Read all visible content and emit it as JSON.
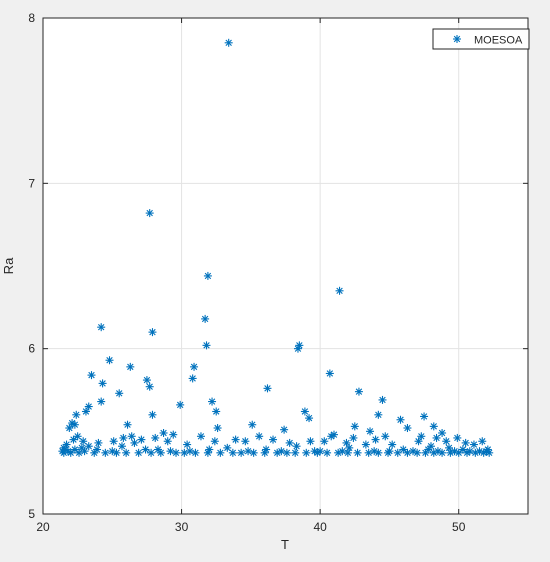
{
  "chart_data": {
    "type": "scatter",
    "title": "",
    "xlabel": "T",
    "ylabel": "Ra",
    "xlim": [
      20,
      55
    ],
    "ylim": [
      5,
      8
    ],
    "xticks": [
      20,
      30,
      40,
      50
    ],
    "yticks": [
      5,
      6,
      7,
      8
    ],
    "grid": true,
    "legend_position": "top-right",
    "series": [
      {
        "name": "MOESOA",
        "color": "#0072BD",
        "marker": "asterisk",
        "points": [
          [
            33.4,
            7.85
          ],
          [
            27.7,
            6.82
          ],
          [
            31.9,
            6.44
          ],
          [
            41.4,
            6.35
          ],
          [
            31.7,
            6.18
          ],
          [
            24.2,
            6.13
          ],
          [
            27.9,
            6.1
          ],
          [
            31.8,
            6.02
          ],
          [
            38.5,
            6.02
          ],
          [
            38.4,
            6.0
          ],
          [
            24.8,
            5.93
          ],
          [
            30.9,
            5.89
          ],
          [
            26.3,
            5.89
          ],
          [
            40.7,
            5.85
          ],
          [
            23.5,
            5.84
          ],
          [
            30.8,
            5.82
          ],
          [
            27.5,
            5.81
          ],
          [
            24.3,
            5.79
          ],
          [
            27.7,
            5.77
          ],
          [
            36.2,
            5.76
          ],
          [
            42.8,
            5.74
          ],
          [
            25.5,
            5.73
          ],
          [
            44.5,
            5.69
          ],
          [
            32.2,
            5.68
          ],
          [
            24.2,
            5.68
          ],
          [
            29.9,
            5.66
          ],
          [
            23.3,
            5.65
          ],
          [
            23.1,
            5.62
          ],
          [
            38.9,
            5.62
          ],
          [
            27.9,
            5.6
          ],
          [
            32.5,
            5.62
          ],
          [
            22.4,
            5.6
          ],
          [
            44.2,
            5.6
          ],
          [
            47.5,
            5.59
          ],
          [
            22.1,
            5.55
          ],
          [
            39.2,
            5.58
          ],
          [
            45.8,
            5.57
          ],
          [
            26.1,
            5.54
          ],
          [
            35.1,
            5.54
          ],
          [
            22.3,
            5.54
          ],
          [
            42.5,
            5.53
          ],
          [
            48.2,
            5.53
          ],
          [
            46.3,
            5.52
          ],
          [
            21.9,
            5.52
          ],
          [
            32.6,
            5.52
          ],
          [
            37.4,
            5.51
          ],
          [
            43.6,
            5.5
          ],
          [
            28.7,
            5.49
          ],
          [
            48.8,
            5.49
          ],
          [
            41.0,
            5.48
          ],
          [
            29.4,
            5.48
          ],
          [
            31.4,
            5.47
          ],
          [
            22.5,
            5.47
          ],
          [
            44.7,
            5.47
          ],
          [
            25.8,
            5.46
          ],
          [
            49.9,
            5.46
          ],
          [
            27.1,
            5.45
          ],
          [
            36.6,
            5.45
          ],
          [
            22.2,
            5.45
          ],
          [
            40.3,
            5.44
          ],
          [
            34.6,
            5.44
          ],
          [
            47.1,
            5.44
          ],
          [
            26.6,
            5.43
          ],
          [
            41.9,
            5.43
          ],
          [
            21.7,
            5.42
          ],
          [
            30.4,
            5.42
          ],
          [
            45.2,
            5.42
          ],
          [
            43.3,
            5.42
          ],
          [
            51.1,
            5.42
          ],
          [
            25.7,
            5.41
          ],
          [
            38.3,
            5.41
          ],
          [
            48.0,
            5.41
          ],
          [
            23.3,
            5.41
          ],
          [
            22.8,
            5.4
          ],
          [
            33.3,
            5.4
          ],
          [
            42.1,
            5.4
          ],
          [
            49.3,
            5.4
          ],
          [
            27.4,
            5.39
          ],
          [
            36.1,
            5.39
          ],
          [
            50.3,
            5.39
          ],
          [
            21.6,
            5.39
          ],
          [
            29.2,
            5.38
          ],
          [
            39.6,
            5.38
          ],
          [
            46.7,
            5.38
          ],
          [
            52.0,
            5.38
          ],
          [
            21.4,
            5.38
          ],
          [
            21.5,
            5.37
          ],
          [
            21.8,
            5.38
          ],
          [
            22.0,
            5.37
          ],
          [
            22.6,
            5.37
          ],
          [
            23.0,
            5.38
          ],
          [
            23.7,
            5.37
          ],
          [
            24.5,
            5.37
          ],
          [
            25.3,
            5.37
          ],
          [
            26.0,
            5.37
          ],
          [
            26.9,
            5.37
          ],
          [
            27.8,
            5.37
          ],
          [
            28.5,
            5.37
          ],
          [
            29.6,
            5.37
          ],
          [
            30.2,
            5.37
          ],
          [
            31.0,
            5.37
          ],
          [
            31.9,
            5.37
          ],
          [
            32.8,
            5.37
          ],
          [
            33.7,
            5.37
          ],
          [
            34.3,
            5.37
          ],
          [
            35.2,
            5.37
          ],
          [
            36.0,
            5.37
          ],
          [
            36.9,
            5.37
          ],
          [
            37.6,
            5.37
          ],
          [
            38.2,
            5.37
          ],
          [
            39.0,
            5.37
          ],
          [
            39.8,
            5.37
          ],
          [
            40.5,
            5.37
          ],
          [
            41.3,
            5.37
          ],
          [
            42.0,
            5.37
          ],
          [
            42.7,
            5.37
          ],
          [
            43.5,
            5.37
          ],
          [
            44.2,
            5.37
          ],
          [
            44.9,
            5.37
          ],
          [
            45.6,
            5.37
          ],
          [
            46.3,
            5.37
          ],
          [
            47.0,
            5.37
          ],
          [
            47.6,
            5.37
          ],
          [
            48.2,
            5.37
          ],
          [
            48.8,
            5.37
          ],
          [
            49.4,
            5.37
          ],
          [
            50.0,
            5.37
          ],
          [
            50.6,
            5.37
          ],
          [
            51.2,
            5.37
          ],
          [
            51.8,
            5.37
          ],
          [
            52.2,
            5.37
          ],
          [
            21.5,
            5.4
          ],
          [
            22.3,
            5.39
          ],
          [
            47.8,
            5.39
          ],
          [
            48.5,
            5.38
          ],
          [
            49.7,
            5.38
          ],
          [
            50.8,
            5.38
          ],
          [
            51.5,
            5.38
          ],
          [
            52.1,
            5.39
          ],
          [
            46.0,
            5.39
          ],
          [
            45.0,
            5.38
          ],
          [
            43.9,
            5.38
          ],
          [
            41.6,
            5.38
          ],
          [
            40.0,
            5.38
          ],
          [
            37.2,
            5.38
          ],
          [
            34.8,
            5.38
          ],
          [
            32.0,
            5.39
          ],
          [
            30.6,
            5.38
          ],
          [
            28.3,
            5.39
          ],
          [
            25.0,
            5.38
          ],
          [
            23.9,
            5.39
          ],
          [
            51.7,
            5.44
          ],
          [
            50.5,
            5.43
          ],
          [
            49.1,
            5.44
          ],
          [
            48.4,
            5.46
          ],
          [
            47.3,
            5.47
          ],
          [
            44.0,
            5.45
          ],
          [
            42.4,
            5.46
          ],
          [
            40.8,
            5.47
          ],
          [
            39.3,
            5.44
          ],
          [
            37.8,
            5.43
          ],
          [
            35.6,
            5.47
          ],
          [
            33.9,
            5.45
          ],
          [
            32.4,
            5.44
          ],
          [
            29.0,
            5.44
          ],
          [
            28.1,
            5.46
          ],
          [
            26.4,
            5.47
          ],
          [
            25.1,
            5.44
          ],
          [
            24.0,
            5.43
          ],
          [
            22.9,
            5.44
          ]
        ]
      }
    ]
  }
}
